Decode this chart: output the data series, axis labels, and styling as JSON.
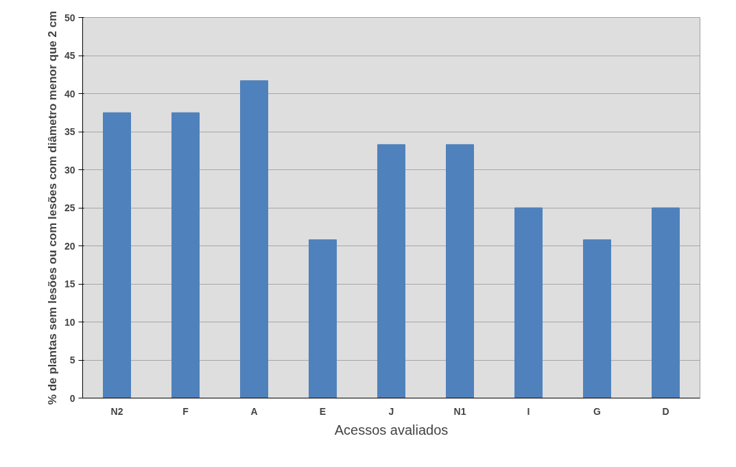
{
  "chart_data": {
    "type": "bar",
    "xlabel": "Acessos avaliados",
    "ylabel": "% de plantas sem lesões ou com lesões com diâmetro menor que 2 cm",
    "categories": [
      "N2",
      "F",
      "A",
      "E",
      "J",
      "N1",
      "I",
      "G",
      "D"
    ],
    "values": [
      37.5,
      37.5,
      41.7,
      20.8,
      33.3,
      33.3,
      25,
      20.8,
      25
    ],
    "color": "#4f81bd",
    "ylim": [
      0,
      50
    ],
    "yticks": [
      0,
      5,
      10,
      15,
      20,
      25,
      30,
      35,
      40,
      45,
      50
    ],
    "grid": "y"
  }
}
